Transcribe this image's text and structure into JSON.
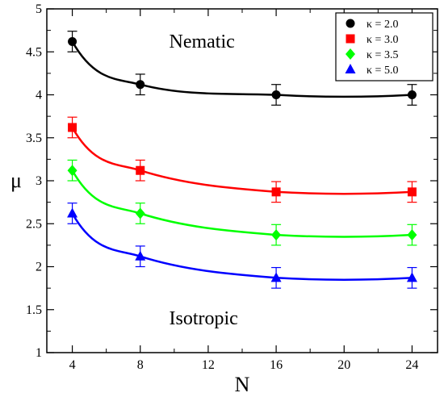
{
  "chart_data": {
    "type": "line",
    "xlabel": "N",
    "ylabel": "μ",
    "xlim": [
      2.5,
      25.5
    ],
    "ylim": [
      1,
      5
    ],
    "xticks": [
      4,
      8,
      12,
      16,
      20,
      24
    ],
    "yticks": [
      1,
      1.5,
      2,
      2.5,
      3,
      3.5,
      4,
      4.5,
      5
    ],
    "ytick_labels": [
      "1",
      "1.5",
      "2",
      "2.5",
      "3",
      "3.5",
      "4",
      "4.5",
      "5"
    ],
    "grid": false,
    "legend_position": "top-right",
    "annotations": [
      {
        "name": "nematic",
        "text": "Nematic",
        "x": 9.7,
        "y": 4.55
      },
      {
        "name": "isotropic",
        "text": "Isotropic",
        "x": 9.7,
        "y": 1.33
      }
    ],
    "series": [
      {
        "name": "κ = 2.0",
        "color": "#000000",
        "marker": "circle",
        "x": [
          4,
          8,
          16,
          24
        ],
        "y": [
          4.62,
          4.12,
          4.0,
          4.0
        ],
        "yerr": [
          0.12,
          0.12,
          0.12,
          0.12
        ],
        "fit_y": [
          4.62,
          4.12,
          4.0,
          4.0
        ]
      },
      {
        "name": "κ = 3.0",
        "color": "#ff0000",
        "marker": "square",
        "x": [
          4,
          8,
          16,
          24
        ],
        "y": [
          3.62,
          3.12,
          2.87,
          2.87
        ],
        "yerr": [
          0.12,
          0.12,
          0.12,
          0.12
        ],
        "fit_y": [
          3.62,
          3.12,
          2.87,
          2.87
        ]
      },
      {
        "name": "κ = 3.5",
        "color": "#00ff00",
        "marker": "diamond",
        "x": [
          4,
          8,
          16,
          24
        ],
        "y": [
          3.12,
          2.62,
          2.37,
          2.37
        ],
        "yerr": [
          0.12,
          0.12,
          0.12,
          0.12
        ],
        "fit_y": [
          3.12,
          2.62,
          2.37,
          2.37
        ]
      },
      {
        "name": "κ = 5.0",
        "color": "#0000ff",
        "marker": "triangle",
        "x": [
          4,
          8,
          16,
          24
        ],
        "y": [
          2.62,
          2.12,
          1.87,
          1.87
        ],
        "yerr": [
          0.12,
          0.12,
          0.12,
          0.12
        ],
        "fit_y": [
          2.62,
          2.12,
          1.87,
          1.87
        ]
      }
    ]
  }
}
